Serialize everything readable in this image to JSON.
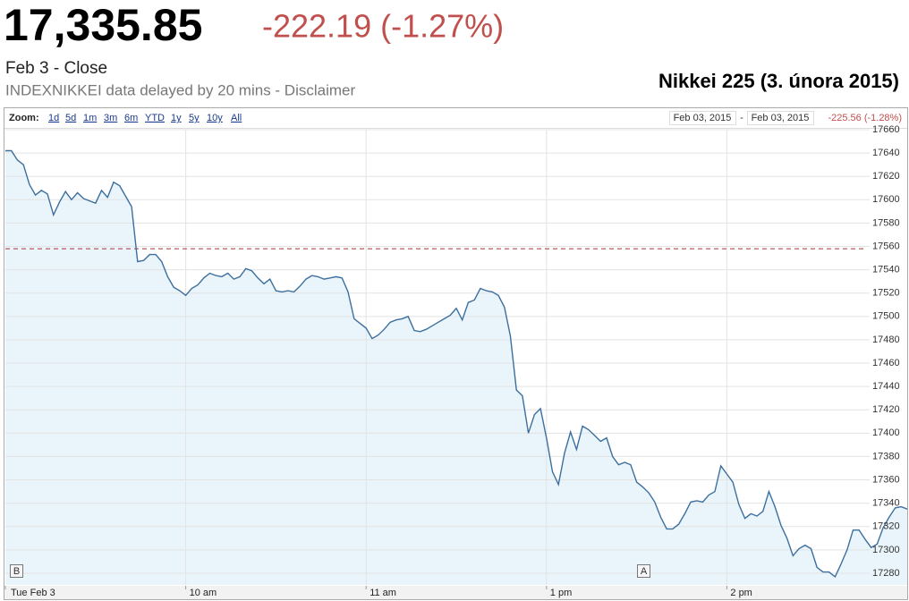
{
  "header": {
    "price": "17,335.85",
    "change": "-222.19 (-1.27%)",
    "close_label": "Feb 3 - Close",
    "disclaimer": "INDEXNIKKEI data delayed by 20 mins - Disclaimer",
    "caption": "Nikkei 225 (3. února 2015)"
  },
  "toolbar": {
    "zoom_label": "Zoom:",
    "zoom_options": [
      "1d",
      "5d",
      "1m",
      "3m",
      "6m",
      "YTD",
      "1y",
      "5y",
      "10y",
      "All"
    ],
    "range_start": "Feb 03, 2015",
    "range_separator": "-",
    "range_end": "Feb 03, 2015",
    "range_change": "-225.56 (-1.28%)"
  },
  "chart_data": {
    "type": "area",
    "categories": [
      "Tue Feb 3",
      null,
      null,
      null,
      null,
      null,
      null,
      null,
      null,
      null,
      null,
      null,
      null,
      null,
      null,
      null,
      null,
      null,
      null,
      null,
      null,
      null,
      null,
      null,
      null,
      null,
      null,
      null,
      null,
      null,
      "10 am",
      null,
      null,
      null,
      null,
      null,
      null,
      null,
      null,
      null,
      null,
      null,
      null,
      null,
      null,
      null,
      null,
      null,
      null,
      null,
      null,
      null,
      null,
      null,
      null,
      null,
      null,
      null,
      null,
      null,
      "11 am",
      null,
      null,
      null,
      null,
      null,
      null,
      null,
      null,
      null,
      null,
      null,
      null,
      null,
      null,
      null,
      null,
      null,
      null,
      null,
      null,
      null,
      null,
      null,
      null,
      null,
      null,
      null,
      null,
      null,
      "1 pm",
      null,
      null,
      null,
      null,
      null,
      null,
      null,
      null,
      null,
      null,
      null,
      null,
      null,
      null,
      null,
      null,
      null,
      null,
      null,
      null,
      null,
      null,
      null,
      null,
      null,
      null,
      null,
      null,
      null,
      "2 pm",
      null,
      null,
      null,
      null,
      null,
      null,
      null,
      null,
      null,
      null,
      null,
      null,
      null,
      null,
      null,
      null,
      null,
      null,
      null,
      null,
      null,
      null,
      null,
      null,
      null,
      null,
      null,
      null,
      null,
      null
    ],
    "values": [
      17642,
      17642,
      17634,
      17630,
      17613,
      17604,
      17608,
      17605,
      17587,
      17598,
      17607,
      17600,
      17606,
      17601,
      17599,
      17597,
      17608,
      17602,
      17615,
      17612,
      17603,
      17594,
      17547,
      17548,
      17553,
      17553,
      17547,
      17534,
      17525,
      17522,
      17518,
      17524,
      17527,
      17533,
      17537,
      17535,
      17534,
      17537,
      17532,
      17534,
      17541,
      17539,
      17533,
      17528,
      17532,
      17522,
      17521,
      17522,
      17521,
      17526,
      17532,
      17535,
      17534,
      17532,
      17533,
      17534,
      17533,
      17521,
      17498,
      17494,
      17490,
      17481,
      17484,
      17489,
      17495,
      17497,
      17498,
      17500,
      17488,
      17487,
      17489,
      17492,
      17495,
      17498,
      17501,
      17507,
      17497,
      17512,
      17514,
      17524,
      17522,
      17521,
      17518,
      17508,
      17483,
      17437,
      17432,
      17400,
      17416,
      17421,
      17396,
      17367,
      17356,
      17383,
      17401,
      17386,
      17406,
      17403,
      17398,
      17393,
      17396,
      17380,
      17373,
      17375,
      17373,
      17358,
      17354,
      17349,
      17341,
      17328,
      17318,
      17318,
      17322,
      17331,
      17341,
      17342,
      17341,
      17347,
      17350,
      17372,
      17365,
      17358,
      17339,
      17327,
      17331,
      17329,
      17333,
      17350,
      17337,
      17321,
      17310,
      17295,
      17301,
      17304,
      17301,
      17285,
      17281,
      17281,
      17277,
      17288,
      17300,
      17317,
      17317,
      17309,
      17302,
      17305,
      17319,
      17328,
      17336,
      17337,
      17335
    ],
    "color": "#3d6f9e",
    "fill": "#e9f5fb",
    "previous_close": 17558.04,
    "previous_close_color": "#a33",
    "annotations": [
      "B",
      "A"
    ],
    "ylim": [
      17270,
      17660
    ],
    "yticks": [
      17280,
      17300,
      17320,
      17340,
      17360,
      17380,
      17400,
      17420,
      17440,
      17460,
      17480,
      17500,
      17520,
      17540,
      17560,
      17580,
      17600,
      17620,
      17640,
      17660
    ],
    "grid": true
  }
}
